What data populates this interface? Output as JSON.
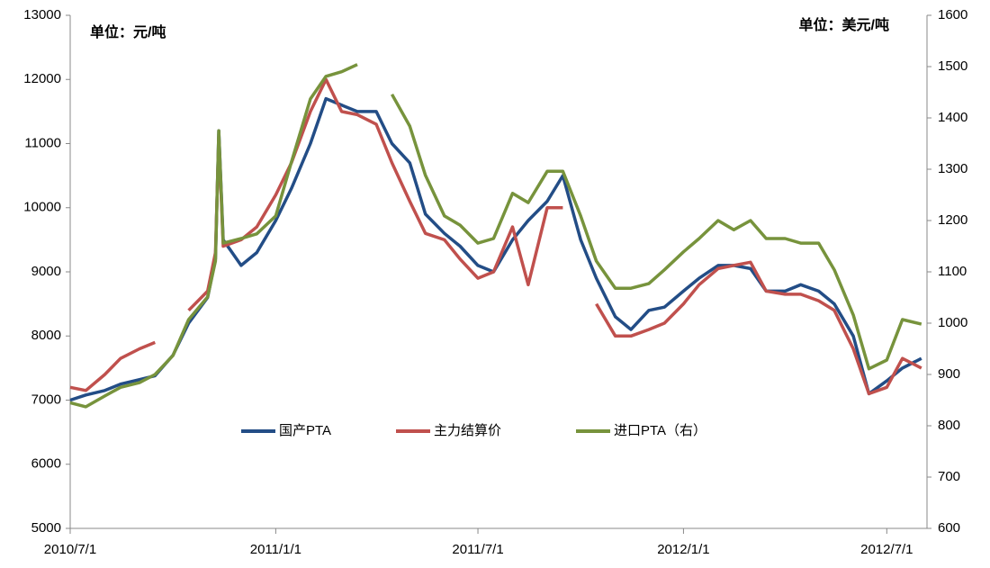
{
  "chart_data": {
    "type": "line",
    "unit_left": "单位：元/吨",
    "unit_right": "单位：美元/吨",
    "x": [
      "2010/7/1",
      "2010/7/15",
      "2010/8/1",
      "2010/8/15",
      "2010/9/1",
      "2010/9/15",
      "2010/10/1",
      "2010/10/15",
      "2010/11/1",
      "2010/11/8",
      "2010/11/11",
      "2010/11/15",
      "2010/12/1",
      "2010/12/15",
      "2011/1/1",
      "2011/1/15",
      "2011/2/1",
      "2011/2/15",
      "2011/3/1",
      "2011/3/15",
      "2011/4/1",
      "2011/4/15",
      "2011/5/1",
      "2011/5/15",
      "2011/6/1",
      "2011/6/15",
      "2011/7/1",
      "2011/7/15",
      "2011/8/1",
      "2011/8/15",
      "2011/9/1",
      "2011/9/15",
      "2011/10/1",
      "2011/10/15",
      "2011/11/1",
      "2011/11/15",
      "2011/12/1",
      "2011/12/15",
      "2012/1/1",
      "2012/1/15",
      "2012/2/1",
      "2012/2/15",
      "2012/3/1",
      "2012/3/15",
      "2012/4/1",
      "2012/4/15",
      "2012/5/1",
      "2012/5/15",
      "2012/6/1",
      "2012/6/15",
      "2012/7/1",
      "2012/7/15",
      "2012/8/1"
    ],
    "xlim": [
      "2010/7/1",
      "2012/8/6"
    ],
    "xticks": [
      "2010/7/1",
      "2011/1/1",
      "2011/7/1",
      "2012/1/1",
      "2012/7/1"
    ],
    "ylim": [
      5000,
      13000
    ],
    "yticks": [
      5000,
      6000,
      7000,
      8000,
      9000,
      10000,
      11000,
      12000,
      13000
    ],
    "y2lim": [
      600,
      1600
    ],
    "y2ticks": [
      600,
      700,
      800,
      900,
      1000,
      1100,
      1200,
      1300,
      1400,
      1500,
      1600
    ],
    "series": [
      {
        "name": "国产PTA",
        "color": "#234d86",
        "values": [
          7000,
          7080,
          7150,
          7250,
          7320,
          7380,
          7700,
          8200,
          8600,
          9200,
          11200,
          9500,
          9100,
          9300,
          9800,
          10300,
          11000,
          11700,
          11600,
          11500,
          11500,
          11000,
          10700,
          9900,
          9600,
          9400,
          9100,
          9000,
          9500,
          9800,
          10100,
          10500,
          9500,
          8900,
          8300,
          8100,
          8400,
          8450,
          8700,
          8900,
          9100,
          9100,
          9050,
          8700,
          8700,
          8800,
          8700,
          8500,
          8000,
          7100,
          7300,
          7500,
          7650
        ]
      },
      {
        "name": "主力结算价",
        "color": "#c0504d",
        "values": [
          7200,
          7150,
          7400,
          7650,
          7800,
          7900,
          null,
          8400,
          8700,
          9300,
          11100,
          9400,
          9500,
          9700,
          10200,
          10700,
          11500,
          12000,
          11500,
          11450,
          11300,
          10700,
          10100,
          9600,
          9500,
          9200,
          8900,
          9000,
          9700,
          8800,
          10000,
          10000,
          null,
          8500,
          8000,
          8000,
          8100,
          8200,
          8500,
          8800,
          9050,
          9100,
          9150,
          8700,
          8650,
          8650,
          8550,
          8400,
          7800,
          7100,
          7200,
          7650,
          7500
        ]
      },
      {
        "name": "进口PTA（右）",
        "color": "#77933c",
        "axis": "y2",
        "values": [
          845,
          837,
          858,
          875,
          884,
          900,
          937,
          1007,
          1051,
          1121,
          1375,
          1156,
          1165,
          1174,
          1209,
          1314,
          1437,
          1481,
          1490,
          1504,
          null,
          1446,
          1384,
          1288,
          1209,
          1191,
          1156,
          1165,
          1253,
          1235,
          1296,
          1296,
          1209,
          1121,
          1068,
          1068,
          1077,
          1104,
          1139,
          1165,
          1200,
          1182,
          1200,
          1165,
          1165,
          1156,
          1156,
          1104,
          1016,
          911,
          928,
          1007,
          998
        ]
      }
    ]
  }
}
